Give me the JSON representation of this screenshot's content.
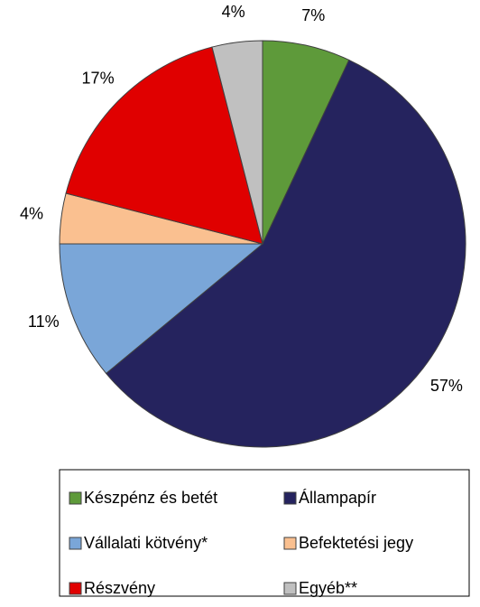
{
  "chart_data": {
    "type": "pie",
    "categories": [
      "Készpénz és betét",
      "Állampapír",
      "Vállalati kötvény*",
      "Befektetési jegy",
      "Részvény",
      "Egyéb**"
    ],
    "values": [
      7,
      57,
      11,
      4,
      17,
      4
    ],
    "value_labels": [
      "7%",
      "57%",
      "11%",
      "4%",
      "17%",
      "4%"
    ],
    "colors": [
      "#5e9a3a",
      "#25235e",
      "#7aa6d8",
      "#fac090",
      "#e00000",
      "#c0c0c0"
    ]
  }
}
